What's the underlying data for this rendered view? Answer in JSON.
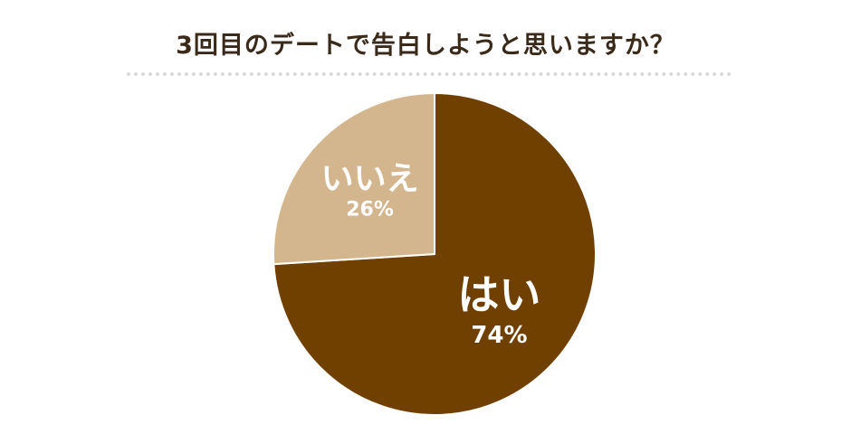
{
  "chart_data": {
    "type": "pie",
    "title": "3回目のデートで告白しようと思いますか？",
    "slices": [
      {
        "label": "はい",
        "value": 74,
        "value_label": "74%",
        "color": "#704000"
      },
      {
        "label": "いいえ",
        "value": 26,
        "value_label": "26%",
        "color": "#d4b68e"
      }
    ],
    "start": "12 o'clock",
    "direction": "clockwise",
    "legend": "none (labels inside slices)"
  }
}
